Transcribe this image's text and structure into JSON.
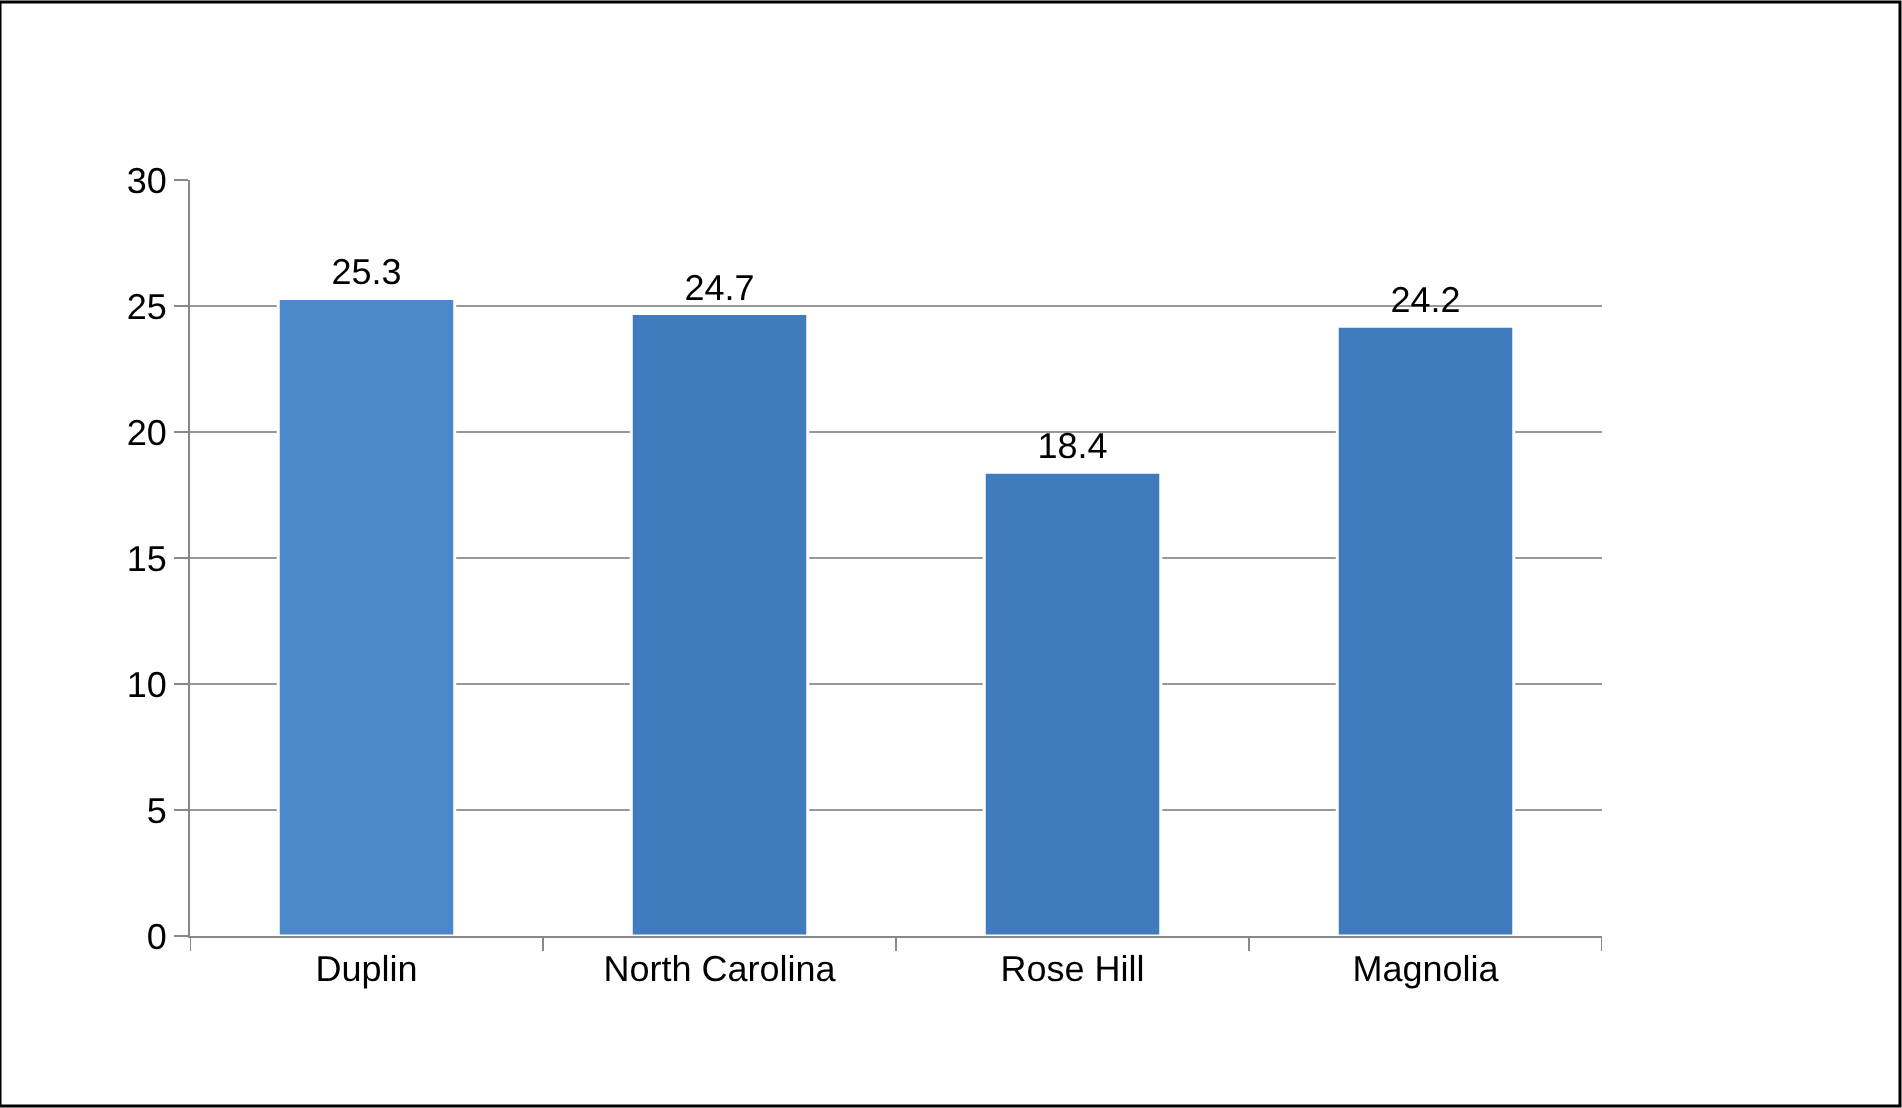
{
  "chart_data": {
    "type": "bar",
    "categories": [
      "Duplin",
      "North Carolina",
      "Rose Hill",
      "Magnolia"
    ],
    "values": [
      25.3,
      24.7,
      18.4,
      24.2
    ],
    "colors": [
      "#4a88c9",
      "#3f7bbd",
      "#3f7bbd",
      "#3f7bbd"
    ],
    "ylim": [
      0,
      30
    ],
    "yticks": [
      0,
      5,
      10,
      15,
      20,
      25,
      30
    ],
    "grid": "y",
    "data_labels": true
  }
}
